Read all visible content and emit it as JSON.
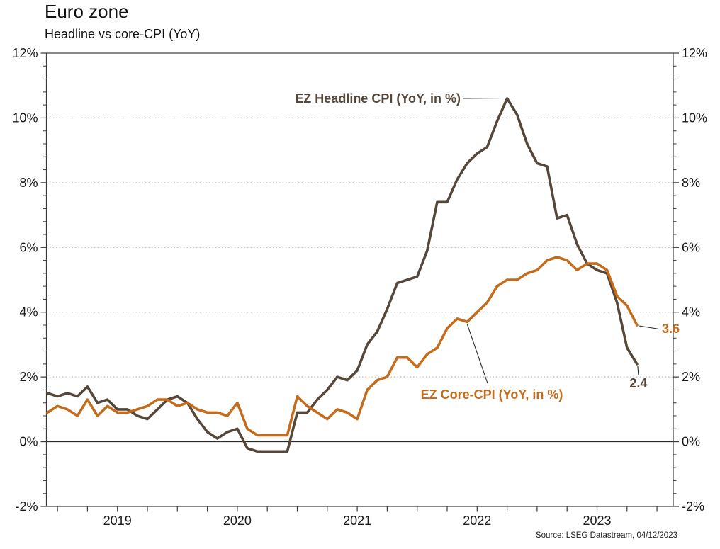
{
  "header": {
    "title": "Euro zone",
    "subtitle": "Headline vs core-CPI (YoY)"
  },
  "source": "Source: LSEG Datastream, 04/12/2023",
  "colors": {
    "headline": "#55483A",
    "core": "#C46B1C",
    "axis": "#3a3a3a",
    "grid": "#adadad",
    "zero_line": "#2b2b2b",
    "text": "#1a1a1a",
    "connector": "#2b2b2b"
  },
  "chart_data": {
    "type": "line",
    "title": "Euro zone",
    "subtitle": "Headline vs core-CPI (YoY)",
    "x_freq": "monthly",
    "x_months": [
      "2018-12",
      "2019-01",
      "2019-02",
      "2019-03",
      "2019-04",
      "2019-05",
      "2019-06",
      "2019-07",
      "2019-08",
      "2019-09",
      "2019-10",
      "2019-11",
      "2019-12",
      "2020-01",
      "2020-02",
      "2020-03",
      "2020-04",
      "2020-05",
      "2020-06",
      "2020-07",
      "2020-08",
      "2020-09",
      "2020-10",
      "2020-11",
      "2020-12",
      "2021-01",
      "2021-02",
      "2021-03",
      "2021-04",
      "2021-05",
      "2021-06",
      "2021-07",
      "2021-08",
      "2021-09",
      "2021-10",
      "2021-11",
      "2021-12",
      "2022-01",
      "2022-02",
      "2022-03",
      "2022-04",
      "2022-05",
      "2022-06",
      "2022-07",
      "2022-08",
      "2022-09",
      "2022-10",
      "2022-11",
      "2022-12",
      "2023-01",
      "2023-02",
      "2023-03",
      "2023-04",
      "2023-05",
      "2023-06",
      "2023-07",
      "2023-08",
      "2023-09",
      "2023-10",
      "2023-11"
    ],
    "x_tick_labels": [
      "2019",
      "2020",
      "2021",
      "2022",
      "2023"
    ],
    "ylim": [
      -2,
      12
    ],
    "y_major_step": 2,
    "y_minor_step": 0.4,
    "y_tick_labels": [
      "-2%",
      "0%",
      "2%",
      "4%",
      "6%",
      "8%",
      "10%",
      "12%"
    ],
    "grid": "dotted horizontal lines at 2% steps, solid line at 0%",
    "legend_position": "inline annotations",
    "series": [
      {
        "name": "EZ Headline CPI (YoY, in %)",
        "color": "#55483A",
        "values": [
          1.5,
          1.4,
          1.5,
          1.4,
          1.7,
          1.2,
          1.3,
          1.0,
          1.0,
          0.8,
          0.7,
          1.0,
          1.3,
          1.4,
          1.2,
          0.7,
          0.3,
          0.1,
          0.3,
          0.4,
          -0.2,
          -0.3,
          -0.3,
          -0.3,
          -0.3,
          0.9,
          0.9,
          1.3,
          1.6,
          2.0,
          1.9,
          2.2,
          3.0,
          3.4,
          4.1,
          4.9,
          5.0,
          5.1,
          5.9,
          7.4,
          7.4,
          8.1,
          8.6,
          8.9,
          9.1,
          9.9,
          10.6,
          10.1,
          9.2,
          8.6,
          8.5,
          6.9,
          7.0,
          6.1,
          5.5,
          5.3,
          5.2,
          4.3,
          2.9,
          2.4
        ]
      },
      {
        "name": "EZ Core-CPI (YoY, in %)",
        "color": "#C46B1C",
        "values": [
          0.9,
          1.1,
          1.0,
          0.8,
          1.3,
          0.8,
          1.1,
          0.9,
          0.9,
          1.0,
          1.1,
          1.3,
          1.3,
          1.1,
          1.2,
          1.0,
          0.9,
          0.9,
          0.8,
          1.2,
          0.4,
          0.2,
          0.2,
          0.2,
          0.2,
          1.4,
          1.1,
          0.9,
          0.7,
          1.0,
          0.9,
          0.7,
          1.6,
          1.9,
          2.0,
          2.6,
          2.6,
          2.3,
          2.7,
          2.9,
          3.5,
          3.8,
          3.7,
          4.0,
          4.3,
          4.8,
          5.0,
          5.0,
          5.2,
          5.3,
          5.6,
          5.7,
          5.6,
          5.3,
          5.5,
          5.5,
          5.3,
          4.5,
          4.2,
          3.6
        ]
      }
    ],
    "annotations": {
      "headline_label": "EZ Headline CPI (YoY, in %)",
      "core_label": "EZ Core-CPI (YoY, in %)",
      "headline_end_value": "2.4",
      "core_end_value": "3.6",
      "headline_peak_value": 10.6,
      "headline_peak_month": "2022-10"
    }
  }
}
